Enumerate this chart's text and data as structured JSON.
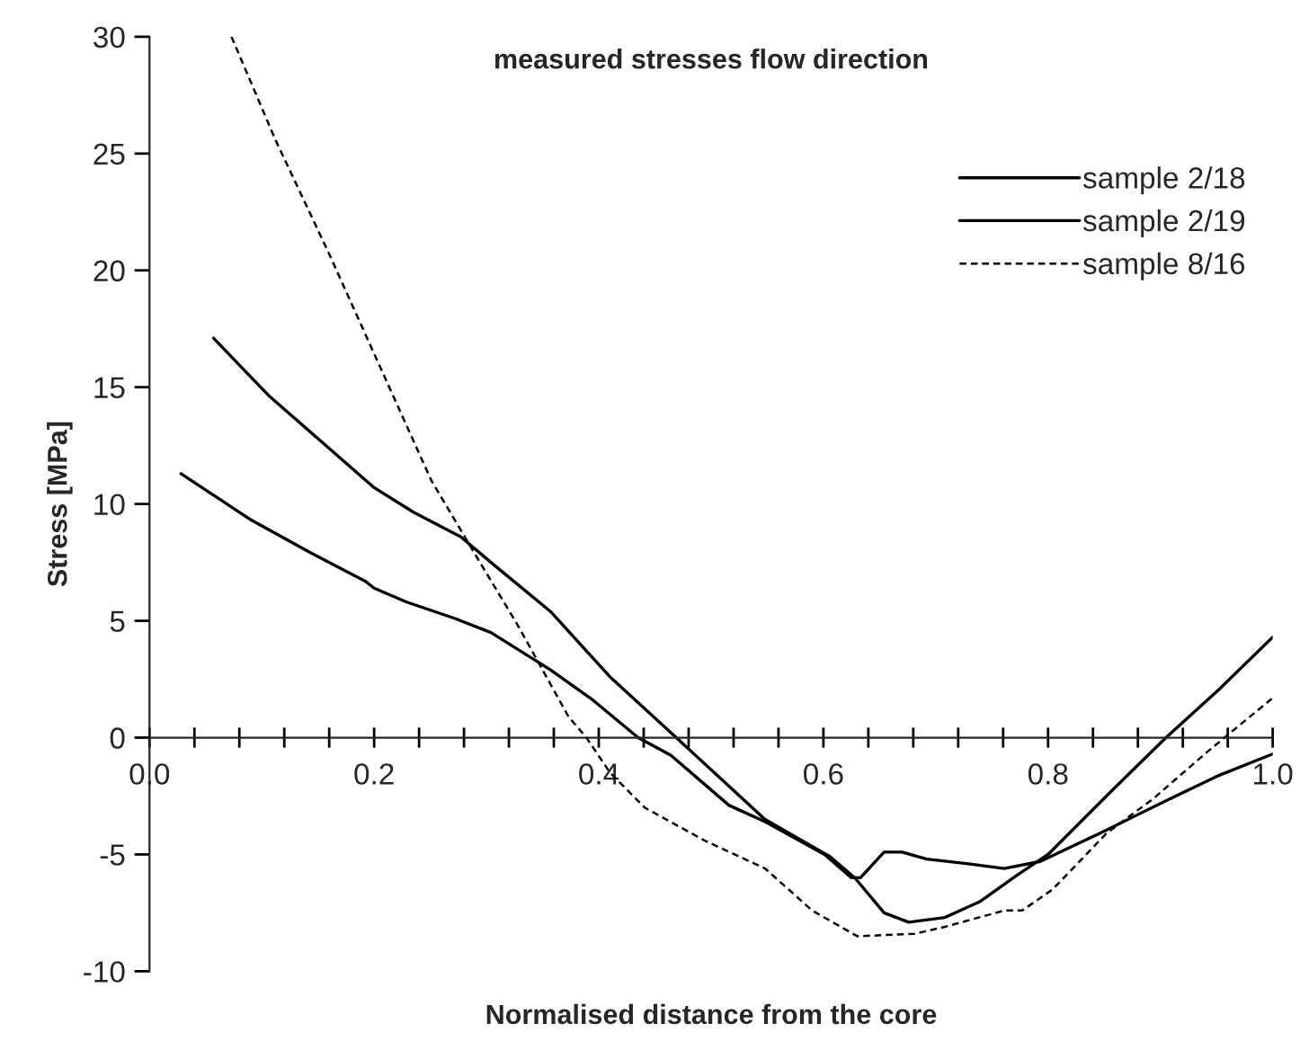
{
  "chart_data": {
    "type": "line",
    "title": "measured stresses flow direction",
    "xlabel": "Normalised distance from the core",
    "ylabel": "Stress [MPa]",
    "xlim": [
      0,
      1.0
    ],
    "ylim": [
      -10,
      30
    ],
    "xticks": [
      {
        "value": 0,
        "label": "0.0"
      },
      {
        "value": 0.04,
        "label": null
      },
      {
        "value": 0.08,
        "label": null
      },
      {
        "value": 0.12,
        "label": null
      },
      {
        "value": 0.16,
        "label": null
      },
      {
        "value": 0.2,
        "label": "0.2"
      },
      {
        "value": 0.24,
        "label": null
      },
      {
        "value": 0.28,
        "label": null
      },
      {
        "value": 0.32,
        "label": null
      },
      {
        "value": 0.36,
        "label": null
      },
      {
        "value": 0.4,
        "label": "0.4"
      },
      {
        "value": 0.44,
        "label": null
      },
      {
        "value": 0.48,
        "label": null
      },
      {
        "value": 0.52,
        "label": null
      },
      {
        "value": 0.56,
        "label": null
      },
      {
        "value": 0.6,
        "label": "0.6"
      },
      {
        "value": 0.64,
        "label": null
      },
      {
        "value": 0.68,
        "label": null
      },
      {
        "value": 0.72,
        "label": null
      },
      {
        "value": 0.76,
        "label": null
      },
      {
        "value": 0.8,
        "label": "0.8"
      },
      {
        "value": 0.84,
        "label": null
      },
      {
        "value": 0.88,
        "label": null
      },
      {
        "value": 0.92,
        "label": null
      },
      {
        "value": 0.96,
        "label": null
      },
      {
        "value": 1.0,
        "label": "1.0"
      }
    ],
    "yticks": [
      -10,
      -5,
      0,
      5,
      10,
      15,
      20,
      25,
      30
    ],
    "grid": false,
    "legend": "top right",
    "marker": "none",
    "series": [
      {
        "name": "sample 2/18",
        "color": "#000000",
        "line_style": "solid",
        "x": [
          0.057,
          0.107,
          0.2,
          0.235,
          0.277,
          0.304,
          0.357,
          0.41,
          0.469,
          0.548,
          0.606,
          0.628,
          0.654,
          0.676,
          0.708,
          0.74,
          0.772,
          0.8,
          0.857,
          0.905,
          0.953,
          1.0
        ],
        "values": [
          17.1,
          14.6,
          10.7,
          9.65,
          8.6,
          7.5,
          5.4,
          2.6,
          0,
          -3.5,
          -5.1,
          -6.0,
          -7.5,
          -7.9,
          -7.7,
          -7.0,
          -5.9,
          -5.0,
          -2.26,
          0,
          2.1,
          4.3
        ]
      },
      {
        "name": "sample 2/19",
        "color": "#000000",
        "line_style": "solid",
        "x": [
          0.028,
          0.091,
          0.144,
          0.192,
          0.2,
          0.229,
          0.272,
          0.304,
          0.357,
          0.395,
          0.435,
          0.464,
          0.516,
          0.548,
          0.601,
          0.625,
          0.633,
          0.654,
          0.67,
          0.692,
          0.729,
          0.761,
          0.793,
          0.846,
          0.905,
          0.953,
          1.0
        ],
        "values": [
          11.3,
          9.3,
          7.9,
          6.7,
          6.4,
          5.8,
          5.1,
          4.5,
          2.9,
          1.6,
          0,
          -0.75,
          -2.9,
          -3.6,
          -5.0,
          -6.0,
          -6.0,
          -4.9,
          -4.9,
          -5.2,
          -5.4,
          -5.6,
          -5.3,
          -4.1,
          -2.7,
          -1.6,
          -0.7
        ]
      },
      {
        "name": "sample 8/16",
        "color": "#000000",
        "line_style": "dashed",
        "x": [
          0.073,
          0.112,
          0.16,
          0.205,
          0.251,
          0.293,
          0.328,
          0.373,
          0.389,
          0.41,
          0.441,
          0.494,
          0.548,
          0.59,
          0.63,
          0.681,
          0.708,
          0.761,
          0.777,
          0.804,
          0.852,
          0.894,
          0.942,
          1.0
        ],
        "values": [
          30,
          25.6,
          20.7,
          15.9,
          11.0,
          7.6,
          4.8,
          0.9,
          0,
          -1.5,
          -3.0,
          -4.4,
          -5.6,
          -7.4,
          -8.5,
          -8.4,
          -8.1,
          -7.4,
          -7.4,
          -6.5,
          -4.1,
          -2.6,
          -0.6,
          1.7
        ]
      }
    ]
  }
}
